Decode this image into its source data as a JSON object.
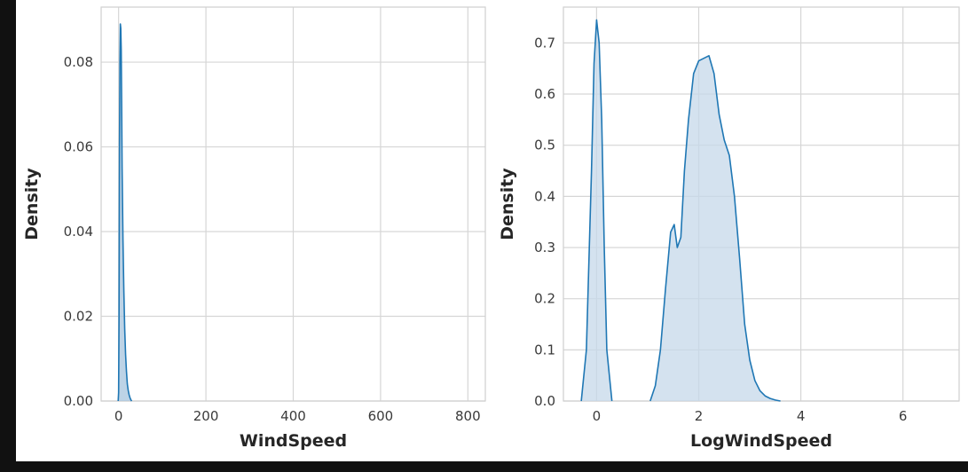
{
  "page": {
    "background": "#111111",
    "figure_background": "#ffffff"
  },
  "chart_data": [
    {
      "type": "area",
      "xlabel": "WindSpeed",
      "ylabel": "Density",
      "xlim": [
        -40,
        840
      ],
      "ylim": [
        0,
        0.093
      ],
      "xticks": [
        0,
        200,
        400,
        600,
        800
      ],
      "yticks": [
        0.0,
        0.02,
        0.04,
        0.06,
        0.08
      ],
      "ytick_labels": [
        "0.00",
        "0.02",
        "0.04",
        "0.06",
        "0.08"
      ],
      "grid": true,
      "color": "#1f77b4",
      "fill_color": "#a7c4de",
      "series": [
        {
          "x": [
            -1,
            0,
            1,
            2,
            3,
            4,
            5,
            6,
            7,
            8,
            10,
            12,
            14,
            16,
            18,
            20,
            22,
            24,
            26,
            28,
            30
          ],
          "y": [
            0,
            0.002,
            0.02,
            0.06,
            0.08,
            0.089,
            0.088,
            0.083,
            0.07,
            0.055,
            0.038,
            0.026,
            0.017,
            0.011,
            0.007,
            0.004,
            0.0025,
            0.0015,
            0.0008,
            0.0003,
            0
          ]
        }
      ]
    },
    {
      "type": "area",
      "xlabel": "LogWindSpeed",
      "ylabel": "Density",
      "xlim": [
        -0.65,
        7.1
      ],
      "ylim": [
        0,
        0.77
      ],
      "xticks": [
        0,
        2,
        4,
        6
      ],
      "yticks": [
        0.0,
        0.1,
        0.2,
        0.3,
        0.4,
        0.5,
        0.6,
        0.7
      ],
      "ytick_labels": [
        "0.0",
        "0.1",
        "0.2",
        "0.3",
        "0.4",
        "0.5",
        "0.6",
        "0.7"
      ],
      "grid": true,
      "color": "#1f77b4",
      "fill_color": "#c5d8ea",
      "series": [
        {
          "x": [
            -0.3,
            -0.2,
            -0.1,
            -0.05,
            0,
            0.05,
            0.1,
            0.15,
            0.2,
            0.3
          ],
          "y": [
            0,
            0.1,
            0.45,
            0.66,
            0.745,
            0.7,
            0.55,
            0.3,
            0.1,
            0
          ]
        },
        {
          "x": [
            1.05,
            1.15,
            1.25,
            1.35,
            1.45,
            1.52,
            1.58,
            1.65,
            1.72,
            1.8,
            1.9,
            2.0,
            2.1,
            2.2,
            2.3,
            2.4,
            2.5,
            2.6,
            2.7,
            2.8,
            2.9,
            3.0,
            3.1,
            3.2,
            3.3,
            3.4,
            3.5,
            3.6
          ],
          "y": [
            0,
            0.03,
            0.1,
            0.22,
            0.33,
            0.345,
            0.3,
            0.32,
            0.45,
            0.55,
            0.64,
            0.665,
            0.67,
            0.675,
            0.64,
            0.56,
            0.51,
            0.48,
            0.4,
            0.28,
            0.15,
            0.08,
            0.04,
            0.02,
            0.01,
            0.005,
            0.002,
            0
          ]
        }
      ]
    }
  ]
}
